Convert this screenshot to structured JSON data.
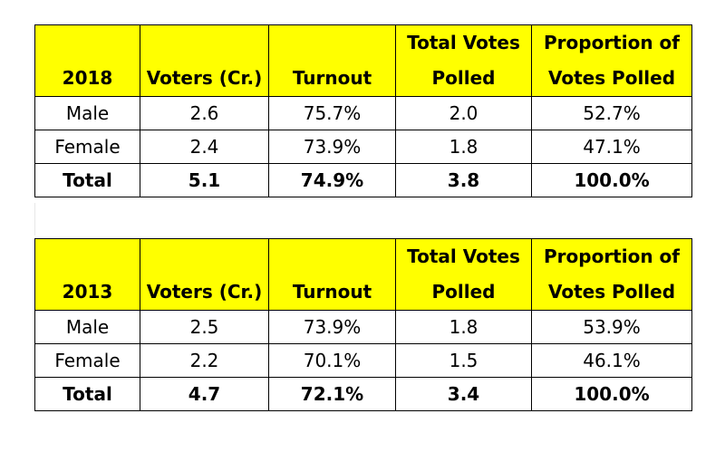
{
  "tables": [
    {
      "year": "2018",
      "headers": {
        "voters": "Voters (Cr.)",
        "turnout": "Turnout",
        "total_votes_line1": "Total Votes",
        "total_votes_line2": "Polled",
        "proportion_line1": "Proportion of",
        "proportion_line2": "Votes Polled"
      },
      "rows": [
        {
          "label": "Male",
          "voters": "2.6",
          "turnout": "75.7%",
          "polled": "2.0",
          "proportion": "52.7%"
        },
        {
          "label": "Female",
          "voters": "2.4",
          "turnout": "73.9%",
          "polled": "1.8",
          "proportion": "47.1%"
        },
        {
          "label": "Total",
          "voters": "5.1",
          "turnout": "74.9%",
          "polled": "3.8",
          "proportion": "100.0%"
        }
      ]
    },
    {
      "year": "2013",
      "headers": {
        "voters": "Voters (Cr.)",
        "turnout": "Turnout",
        "total_votes_line1": "Total Votes",
        "total_votes_line2": "Polled",
        "proportion_line1": "Proportion of",
        "proportion_line2": "Votes Polled"
      },
      "rows": [
        {
          "label": "Male",
          "voters": "2.5",
          "turnout": "73.9%",
          "polled": "1.8",
          "proportion": "53.9%"
        },
        {
          "label": "Female",
          "voters": "2.2",
          "turnout": "70.1%",
          "polled": "1.5",
          "proportion": "46.1%"
        },
        {
          "label": "Total",
          "voters": "4.7",
          "turnout": "72.1%",
          "polled": "3.4",
          "proportion": "100.0%"
        }
      ]
    }
  ],
  "colors": {
    "header_background": "#ffff00",
    "border": "#000000"
  }
}
